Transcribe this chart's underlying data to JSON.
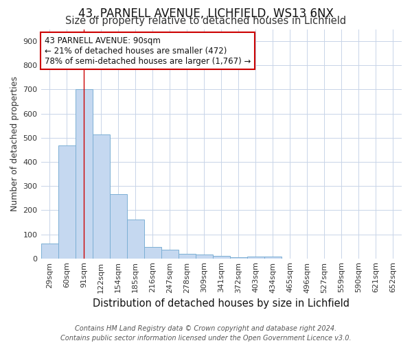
{
  "title": "43, PARNELL AVENUE, LICHFIELD, WS13 6NX",
  "subtitle": "Size of property relative to detached houses in Lichfield",
  "xlabel": "Distribution of detached houses by size in Lichfield",
  "ylabel": "Number of detached properties",
  "categories": [
    "29sqm",
    "60sqm",
    "91sqm",
    "122sqm",
    "154sqm",
    "185sqm",
    "216sqm",
    "247sqm",
    "278sqm",
    "309sqm",
    "341sqm",
    "372sqm",
    "403sqm",
    "434sqm",
    "465sqm",
    "496sqm",
    "527sqm",
    "559sqm",
    "590sqm",
    "621sqm",
    "652sqm"
  ],
  "values": [
    62,
    468,
    700,
    515,
    265,
    160,
    48,
    35,
    20,
    15,
    10,
    5,
    8,
    8,
    0,
    0,
    0,
    0,
    0,
    0,
    0
  ],
  "bar_color": "#c5d8f0",
  "bar_edgecolor": "#7bafd4",
  "redline_x": 2,
  "annotation_line1": "43 PARNELL AVENUE: 90sqm",
  "annotation_line2": "← 21% of detached houses are smaller (472)",
  "annotation_line3": "78% of semi-detached houses are larger (1,767) →",
  "annotation_box_edgecolor": "#cc0000",
  "annotation_box_facecolor": "white",
  "redline_color": "#cc0000",
  "grid_color": "#c8d4e8",
  "ylim": [
    0,
    950
  ],
  "yticks": [
    0,
    100,
    200,
    300,
    400,
    500,
    600,
    700,
    800,
    900
  ],
  "footer": "Contains HM Land Registry data © Crown copyright and database right 2024.\nContains public sector information licensed under the Open Government Licence v3.0.",
  "background_color": "#ffffff",
  "title_fontsize": 12,
  "subtitle_fontsize": 10.5,
  "xlabel_fontsize": 10.5,
  "ylabel_fontsize": 9,
  "tick_fontsize": 8,
  "annotation_fontsize": 8.5,
  "footer_fontsize": 7
}
